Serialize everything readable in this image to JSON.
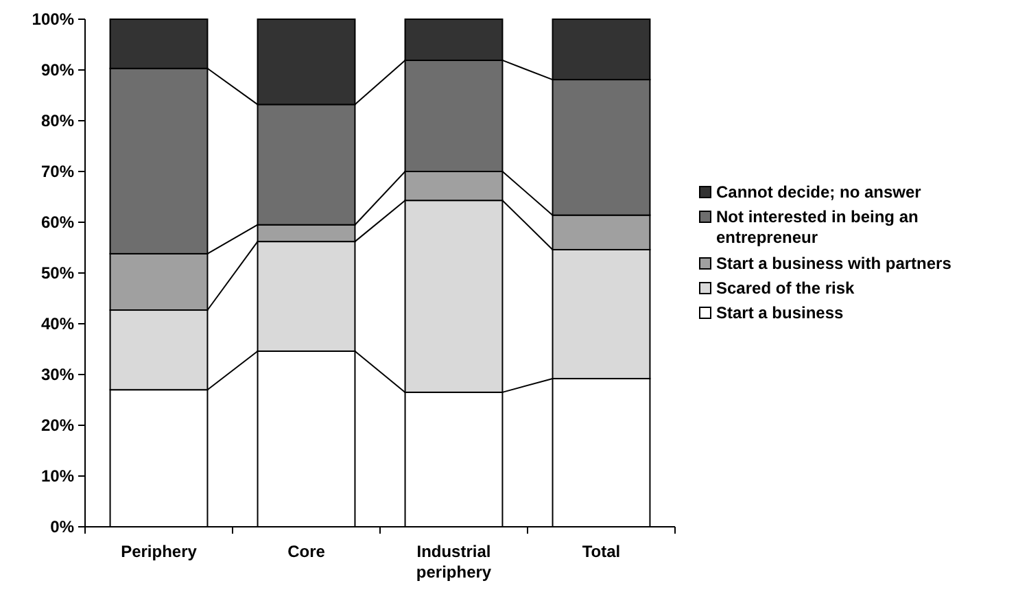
{
  "chart_data": {
    "type": "bar",
    "stacked": true,
    "categories": [
      "Periphery",
      "Core",
      "Industrial periphery",
      "Total"
    ],
    "series": [
      {
        "name": "Start a business",
        "color": "#ffffff",
        "values": [
          27,
          34.6,
          26.5,
          29.2
        ]
      },
      {
        "name": "Scared of the risk",
        "color": "#d9d9d9",
        "values": [
          15.7,
          21.6,
          37.8,
          25.4
        ]
      },
      {
        "name": "Start a business with partners",
        "color": "#a0a0a0",
        "values": [
          11.1,
          3.3,
          5.7,
          6.8
        ]
      },
      {
        "name": "Not interested in being an entrepreneur",
        "color": "#6e6e6e",
        "values": [
          36.5,
          23.7,
          21.9,
          26.7
        ]
      },
      {
        "name": "Cannot decide; no answer",
        "color": "#333333",
        "values": [
          9.7,
          16.8,
          8.1,
          11.9
        ]
      }
    ],
    "ylim": [
      0,
      100
    ],
    "yticks": [
      {
        "value": 0,
        "label": "0%"
      },
      {
        "value": 10,
        "label": "10%"
      },
      {
        "value": 20,
        "label": "20%"
      },
      {
        "value": 30,
        "label": "30%"
      },
      {
        "value": 40,
        "label": "40%"
      },
      {
        "value": 50,
        "label": "50%"
      },
      {
        "value": 60,
        "label": "60%"
      },
      {
        "value": 70,
        "label": "70%"
      },
      {
        "value": 80,
        "label": "80%"
      },
      {
        "value": 90,
        "label": "90%"
      },
      {
        "value": 100,
        "label": "100%"
      }
    ],
    "legend": "right",
    "grid": false
  }
}
